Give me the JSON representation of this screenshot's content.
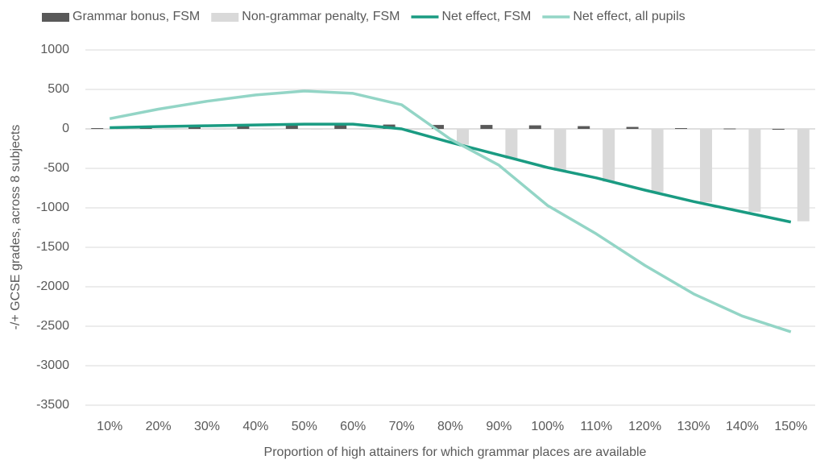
{
  "chart_data": {
    "type": "bar_line",
    "y_label": "-/+ GCSE grades, across 8 subjects",
    "x_label": "Proportion of high attainers for which grammar places are available",
    "categories": [
      "10%",
      "20%",
      "30%",
      "40%",
      "50%",
      "60%",
      "70%",
      "80%",
      "90%",
      "100%",
      "110%",
      "120%",
      "130%",
      "140%",
      "150%"
    ],
    "series": [
      {
        "name": "Grammar bonus, FSM",
        "kind": "bar",
        "color": "#595959",
        "values": [
          10,
          20,
          30,
          40,
          50,
          55,
          55,
          50,
          50,
          45,
          35,
          25,
          10,
          5,
          0
        ]
      },
      {
        "name": "Non-grammar penalty, FSM",
        "kind": "bar",
        "color": "#d9d9d9",
        "values": [
          0,
          0,
          0,
          0,
          0,
          0,
          -10,
          -200,
          -380,
          -530,
          -670,
          -800,
          -930,
          -1050,
          -1170
        ]
      },
      {
        "name": "Net effect, FSM",
        "kind": "line",
        "color": "#1a9b82",
        "values": [
          15,
          30,
          40,
          50,
          60,
          60,
          0,
          -170,
          -330,
          -490,
          -620,
          -775,
          -920,
          -1050,
          -1180
        ]
      },
      {
        "name": "Net effect, all pupils",
        "kind": "line",
        "color": "#93d5c6",
        "values": [
          130,
          250,
          350,
          430,
          480,
          450,
          305,
          -130,
          -460,
          -970,
          -1330,
          -1730,
          -2090,
          -2370,
          -2570
        ]
      }
    ],
    "ylim": [
      -3500,
      1000
    ],
    "yticks": [
      1000,
      500,
      0,
      -500,
      -1000,
      -1500,
      -2000,
      -2500,
      -3000,
      -3500
    ],
    "grid": true
  }
}
